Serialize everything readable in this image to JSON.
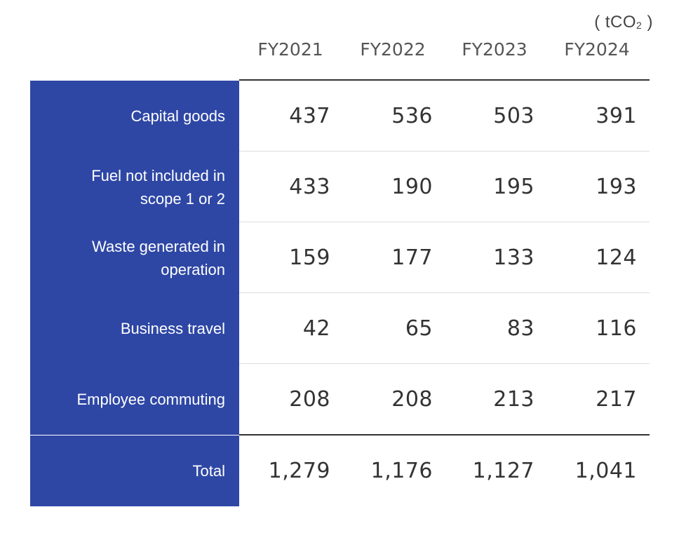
{
  "unit": {
    "prefix": "( tCO",
    "subscript": "2",
    "suffix": " )"
  },
  "columns": [
    "FY2021",
    "FY2022",
    "FY2023",
    "FY2024"
  ],
  "rows": [
    {
      "label": "Capital goods",
      "values": [
        "437",
        "536",
        "503",
        "391"
      ]
    },
    {
      "label": "Fuel not included in scope 1 or 2",
      "values": [
        "433",
        "190",
        "195",
        "193"
      ]
    },
    {
      "label": "Waste generated in operation",
      "values": [
        "159",
        "177",
        "133",
        "124"
      ]
    },
    {
      "label": "Business travel",
      "values": [
        "42",
        "65",
        "83",
        "116"
      ]
    },
    {
      "label": "Employee commuting",
      "values": [
        "208",
        "208",
        "213",
        "217"
      ]
    },
    {
      "label": "Total",
      "values": [
        "1,279",
        "1,176",
        "1,127",
        "1,041"
      ]
    }
  ],
  "colors": {
    "label_background": "#2e47a5",
    "label_text": "#ffffff",
    "rule": "#333333",
    "divider": "#dddddd"
  }
}
